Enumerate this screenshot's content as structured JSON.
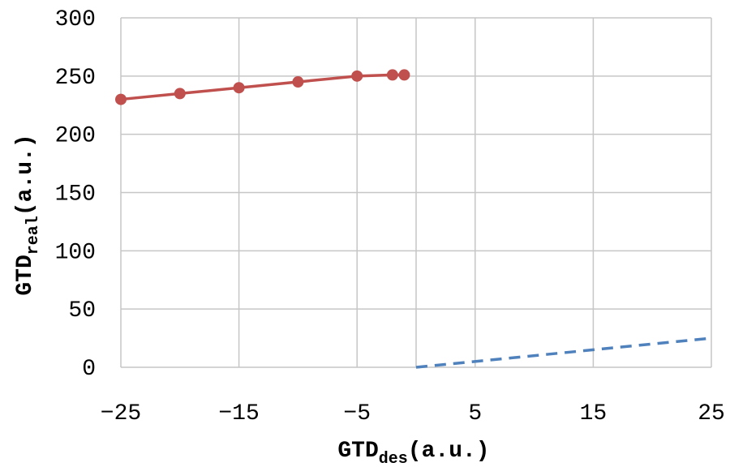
{
  "chart_data": {
    "type": "line",
    "title": "",
    "xlabel": {
      "main": "GTD",
      "sub": "des",
      "unit": "(a.u.)"
    },
    "ylabel": {
      "main": "GTD",
      "sub": "real",
      "unit": "(a.u.)"
    },
    "xlim": [
      -25,
      25
    ],
    "ylim": [
      0,
      300
    ],
    "xticks": [
      -25,
      -15,
      -5,
      5,
      15,
      25
    ],
    "xtick_labels": [
      "−25",
      "−15",
      "−5",
      "5",
      "15",
      "25"
    ],
    "xgrid": [
      -25,
      -15,
      -5,
      0,
      5,
      15,
      25
    ],
    "yticks": [
      0,
      50,
      100,
      150,
      200,
      250,
      300
    ],
    "ytick_labels": [
      "0",
      "50",
      "100",
      "150",
      "200",
      "250",
      "300"
    ],
    "grid": true,
    "legend": "none",
    "series": [
      {
        "x": [
          -25,
          -20,
          -15,
          -10,
          -5,
          -2,
          -1
        ],
        "y": [
          230,
          235,
          240,
          245,
          250,
          251,
          251
        ],
        "color": "#C0504D",
        "style": "solid",
        "markers": true
      },
      {
        "x": [
          0,
          25
        ],
        "y": [
          0,
          25
        ],
        "color": "#4F81BD",
        "style": "dashed",
        "markers": false
      }
    ]
  }
}
